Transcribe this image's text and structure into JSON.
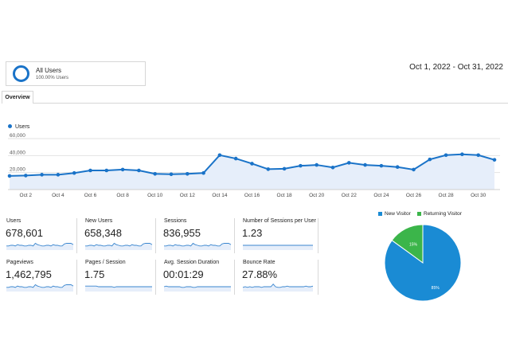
{
  "segment": {
    "name": "All Users",
    "percent": "100.00% Users"
  },
  "date_range": "Oct 1, 2022 - Oct 31, 2022",
  "tabs": [
    {
      "label": "Overview"
    }
  ],
  "colors": {
    "accent": "#1a73c8",
    "area_fill": "#e6eefa",
    "returning": "#3bb54a",
    "new": "#1a8bd4"
  },
  "chart_data": [
    {
      "type": "line",
      "series": [
        {
          "name": "Users",
          "values": [
            16000,
            16500,
            17500,
            17500,
            19500,
            22500,
            22500,
            23500,
            22500,
            18500,
            18000,
            18500,
            19500,
            40500,
            36500,
            30500,
            24000,
            24500,
            28000,
            29000,
            26000,
            31500,
            29000,
            28000,
            26500,
            23500,
            35500,
            40500,
            41500,
            40500,
            35000
          ]
        }
      ],
      "x": [
        "Oct 1",
        "Oct 2",
        "Oct 3",
        "Oct 4",
        "Oct 5",
        "Oct 6",
        "Oct 7",
        "Oct 8",
        "Oct 9",
        "Oct 10",
        "Oct 11",
        "Oct 12",
        "Oct 13",
        "Oct 14",
        "Oct 15",
        "Oct 16",
        "Oct 17",
        "Oct 18",
        "Oct 19",
        "Oct 20",
        "Oct 21",
        "Oct 22",
        "Oct 23",
        "Oct 24",
        "Oct 25",
        "Oct 26",
        "Oct 27",
        "Oct 28",
        "Oct 29",
        "Oct 30",
        "Oct 31"
      ],
      "x_tick_labels": [
        "Oct 2",
        "Oct 4",
        "Oct 6",
        "Oct 8",
        "Oct 10",
        "Oct 12",
        "Oct 14",
        "Oct 16",
        "Oct 18",
        "Oct 20",
        "Oct 22",
        "Oct 24",
        "Oct 26",
        "Oct 28",
        "Oct 30"
      ],
      "y_ticks": [
        "60,000",
        "40,000",
        "20,000"
      ],
      "ylim": [
        0,
        60000
      ],
      "grid": true,
      "legend": "top-left"
    },
    {
      "type": "pie",
      "categories": [
        "New Visitor",
        "Returning Visitor"
      ],
      "values": [
        85,
        15
      ],
      "labels": [
        "85%",
        "15%"
      ],
      "legend": "top"
    }
  ],
  "metrics": [
    {
      "label": "Users",
      "value": "678,601",
      "spark": [
        5,
        5,
        6,
        6,
        5,
        7,
        6,
        6,
        5,
        5,
        6,
        6,
        5,
        9,
        7,
        6,
        5,
        5,
        6,
        6,
        5,
        7,
        6,
        6,
        5,
        5,
        8,
        9,
        9,
        9,
        7
      ]
    },
    {
      "label": "New Users",
      "value": "658,348",
      "spark": [
        5,
        5,
        6,
        6,
        5,
        7,
        6,
        6,
        5,
        5,
        6,
        6,
        5,
        9,
        7,
        6,
        5,
        5,
        6,
        6,
        5,
        7,
        6,
        6,
        5,
        5,
        8,
        9,
        9,
        9,
        7
      ]
    },
    {
      "label": "Sessions",
      "value": "836,955",
      "spark": [
        5,
        5,
        6,
        6,
        5,
        7,
        6,
        6,
        5,
        5,
        6,
        6,
        5,
        9,
        7,
        6,
        5,
        5,
        6,
        6,
        5,
        7,
        6,
        6,
        5,
        5,
        8,
        9,
        9,
        9,
        7
      ]
    },
    {
      "label": "Number of Sessions per User",
      "value": "1.23",
      "spark": [
        6,
        6,
        6,
        6,
        6,
        6,
        6,
        6,
        6,
        6,
        6,
        6,
        6,
        6,
        6,
        6,
        6,
        6,
        6,
        6,
        6,
        6,
        6,
        6,
        6,
        6,
        6,
        6,
        6,
        6,
        6
      ]
    },
    {
      "label": "Pageviews",
      "value": "1,462,795",
      "spark": [
        5,
        5,
        6,
        6,
        5,
        7,
        6,
        6,
        5,
        5,
        6,
        6,
        5,
        9,
        7,
        6,
        5,
        5,
        6,
        6,
        5,
        7,
        6,
        6,
        5,
        5,
        8,
        9,
        9,
        9,
        7
      ]
    },
    {
      "label": "Pages / Session",
      "value": "1.75",
      "spark": [
        7,
        7,
        7,
        7,
        7,
        7,
        6,
        6,
        6,
        6,
        6,
        6,
        6,
        5,
        6,
        6,
        6,
        6,
        6,
        6,
        6,
        6,
        6,
        6,
        6,
        6,
        6,
        6,
        6,
        6,
        6
      ]
    },
    {
      "label": "Avg. Session Duration",
      "value": "00:01:29",
      "spark": [
        6,
        7,
        6,
        6,
        6,
        6,
        6,
        6,
        5,
        5,
        6,
        6,
        6,
        5,
        5,
        6,
        6,
        6,
        6,
        6,
        6,
        6,
        6,
        6,
        6,
        6,
        6,
        6,
        6,
        6,
        6
      ]
    },
    {
      "label": "Bounce Rate",
      "value": "27.88%",
      "spark": [
        5,
        6,
        5,
        6,
        5,
        6,
        6,
        6,
        5,
        6,
        6,
        6,
        6,
        10,
        6,
        5,
        5,
        6,
        6,
        7,
        6,
        6,
        6,
        6,
        6,
        6,
        6,
        7,
        6,
        6,
        7
      ]
    }
  ]
}
